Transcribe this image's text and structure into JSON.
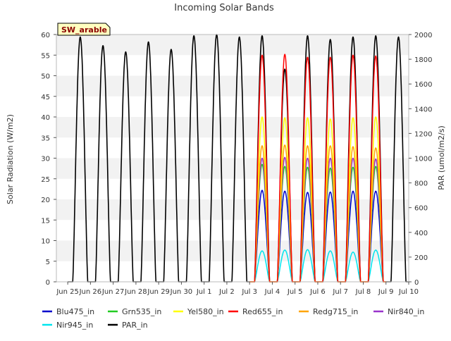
{
  "chart_data": {
    "type": "line",
    "title": "Incoming Solar Bands",
    "badge": "SW_arable",
    "ylabel_left": "Solar Radiation (W/m2)",
    "ylabel_right": "PAR (umol/m2/s)",
    "ylim_left": [
      0,
      60
    ],
    "ylim_right": [
      0,
      2000
    ],
    "yticks_left": [
      "0",
      "5",
      "10",
      "15",
      "20",
      "25",
      "30",
      "35",
      "40",
      "45",
      "50",
      "55",
      "60"
    ],
    "yticks_right": [
      "0",
      "200",
      "400",
      "600",
      "800",
      "1000",
      "1200",
      "1400",
      "1600",
      "1800",
      "2000"
    ],
    "xlim": [
      -0.5,
      15
    ],
    "xticks": [
      "Jun 25",
      "Jun 26",
      "Jun 27",
      "Jun 28",
      "Jun 29",
      "Jun 30",
      "Jul 1",
      "Jul 2",
      "Jul 3",
      "Jul 4",
      "Jul 5",
      "Jul 6",
      "Jul 7",
      "Jul 8",
      "Jul 9",
      "Jul 10"
    ],
    "x_unit": "days since Jun 25 00:00",
    "grid": true,
    "legend_placement": "bottom",
    "series": [
      {
        "name": "Blu475_in",
        "color": "#0000cc",
        "axis": "left",
        "start_day": 8,
        "peaks": [
          22.2,
          22.0,
          21.7,
          21.8,
          22.0,
          22.0
        ]
      },
      {
        "name": "Grn535_in",
        "color": "#22cc22",
        "axis": "left",
        "start_day": 8,
        "peaks": [
          28.5,
          28.0,
          27.8,
          27.6,
          27.8,
          28.0
        ]
      },
      {
        "name": "Yel580_in",
        "color": "#ffff00",
        "axis": "left",
        "start_day": 8,
        "peaks": [
          40.0,
          39.8,
          39.8,
          39.5,
          39.8,
          40.0
        ]
      },
      {
        "name": "Red655_in",
        "color": "#ff0000",
        "axis": "left",
        "start_day": 8,
        "peaks": [
          55.0,
          55.2,
          54.5,
          54.5,
          55.0,
          54.8
        ]
      },
      {
        "name": "Redg715_in",
        "color": "#ffa500",
        "axis": "left",
        "start_day": 8,
        "peaks": [
          33.0,
          33.2,
          33.0,
          33.0,
          32.8,
          32.5
        ]
      },
      {
        "name": "Nir840_in",
        "color": "#9933cc",
        "axis": "left",
        "start_day": 8,
        "peaks": [
          30.0,
          30.2,
          30.0,
          30.0,
          30.0,
          29.8
        ]
      },
      {
        "name": "Nir945_in",
        "color": "#00e5ee",
        "axis": "left",
        "start_day": 8,
        "peaks": [
          7.5,
          7.7,
          7.8,
          7.5,
          7.2,
          7.7
        ]
      },
      {
        "name": "PAR_in",
        "color": "#000000",
        "axis": "right",
        "start_day": 0,
        "peaks": [
          1980,
          1910,
          1860,
          1940,
          1880,
          1990,
          2000,
          1980,
          1990,
          1720,
          1990,
          1960,
          1980,
          1990,
          1980
        ]
      }
    ]
  }
}
